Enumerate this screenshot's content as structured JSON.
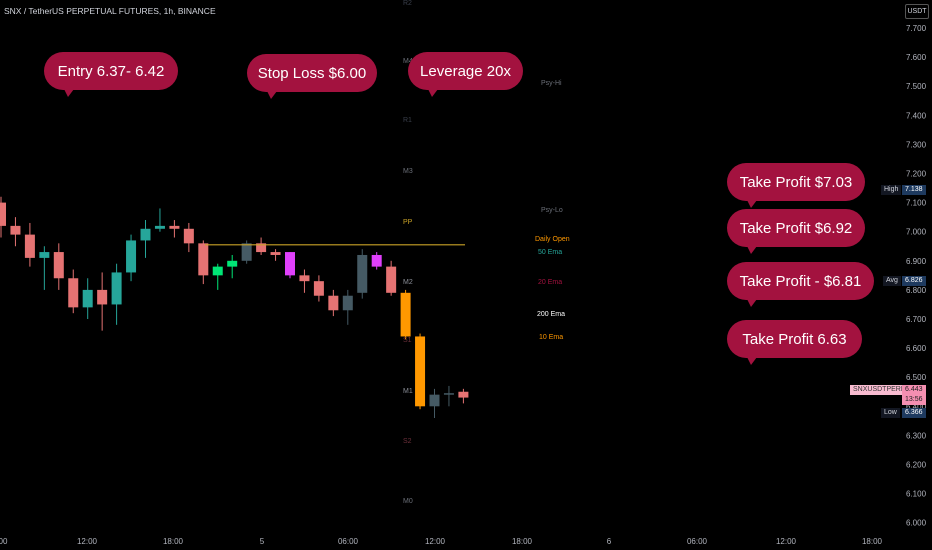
{
  "header": {
    "title": "SNX / TetherUS PERPETUAL FUTURES, 1h, BINANCE",
    "currency_button": "USDT"
  },
  "annotations": [
    {
      "label": "Entry 6.37- 6.42"
    },
    {
      "label": "Stop Loss $6.00"
    },
    {
      "label": "Leverage 20x"
    },
    {
      "label": "Take Profit $7.03"
    },
    {
      "label": "Take Profit $6.92"
    },
    {
      "label": "Take Profit - $6.81"
    },
    {
      "label": "Take Profit 6.63"
    }
  ],
  "price_tags": {
    "high": {
      "label": "High",
      "value": "7.138"
    },
    "avg": {
      "label": "Avg",
      "value": "6.826"
    },
    "symbol": {
      "label": "SNXUSDTPERP",
      "value": "6.443",
      "countdown": "13:56"
    },
    "low": {
      "label": "Low",
      "value": "6.366"
    }
  },
  "chart_data": {
    "type": "candlestick",
    "y_ticks": [
      "7.700",
      "7.600",
      "7.500",
      "7.400",
      "7.300",
      "7.200",
      "7.100",
      "7.000",
      "6.900",
      "6.800",
      "6.700",
      "6.600",
      "6.500",
      "6.400",
      "6.300",
      "6.200",
      "6.100",
      "6.000"
    ],
    "x_ticks": [
      "00",
      "12:00",
      "18:00",
      "5",
      "06:00",
      "12:00",
      "18:00",
      "6",
      "06:00",
      "12:00",
      "18:00"
    ],
    "pivot_labels": [
      "R2",
      "M4",
      "R1",
      "M3",
      "PP",
      "M2",
      "S1",
      "M1",
      "S2",
      "M0"
    ],
    "indicator_labels": [
      "Psy-Hi",
      "Psy-Lo",
      "Daily Open",
      "50 Ema",
      "20 Ema",
      "200 Ema",
      "10 Ema"
    ],
    "daily_open": 6.955,
    "colors": {
      "up": "#26a69a",
      "down": "#e57373",
      "up_bright": "#00e676",
      "down_magenta": "#e040fb",
      "down_orange": "#ff9800",
      "up_grey": "#455a64"
    },
    "candles": [
      {
        "o": 7.1,
        "h": 7.12,
        "l": 6.98,
        "c": 7.02,
        "k": "down"
      },
      {
        "o": 7.02,
        "h": 7.05,
        "l": 6.95,
        "c": 6.99,
        "k": "down"
      },
      {
        "o": 6.99,
        "h": 7.03,
        "l": 6.88,
        "c": 6.91,
        "k": "down"
      },
      {
        "o": 6.91,
        "h": 6.95,
        "l": 6.8,
        "c": 6.93,
        "k": "up"
      },
      {
        "o": 6.93,
        "h": 6.96,
        "l": 6.8,
        "c": 6.84,
        "k": "down"
      },
      {
        "o": 6.84,
        "h": 6.87,
        "l": 6.72,
        "c": 6.74,
        "k": "down"
      },
      {
        "o": 6.74,
        "h": 6.84,
        "l": 6.7,
        "c": 6.8,
        "k": "up"
      },
      {
        "o": 6.8,
        "h": 6.86,
        "l": 6.66,
        "c": 6.75,
        "k": "down"
      },
      {
        "o": 6.75,
        "h": 6.89,
        "l": 6.68,
        "c": 6.86,
        "k": "up"
      },
      {
        "o": 6.86,
        "h": 6.99,
        "l": 6.83,
        "c": 6.97,
        "k": "up"
      },
      {
        "o": 6.97,
        "h": 7.04,
        "l": 6.91,
        "c": 7.01,
        "k": "up"
      },
      {
        "o": 7.01,
        "h": 7.08,
        "l": 7.0,
        "c": 7.02,
        "k": "up"
      },
      {
        "o": 7.02,
        "h": 7.04,
        "l": 6.98,
        "c": 7.01,
        "k": "down"
      },
      {
        "o": 7.01,
        "h": 7.03,
        "l": 6.93,
        "c": 6.96,
        "k": "down"
      },
      {
        "o": 6.96,
        "h": 6.97,
        "l": 6.82,
        "c": 6.85,
        "k": "down"
      },
      {
        "o": 6.85,
        "h": 6.89,
        "l": 6.8,
        "c": 6.88,
        "k": "upb"
      },
      {
        "o": 6.88,
        "h": 6.92,
        "l": 6.84,
        "c": 6.9,
        "k": "upb"
      },
      {
        "o": 6.9,
        "h": 6.97,
        "l": 6.89,
        "c": 6.96,
        "k": "upg"
      },
      {
        "o": 6.96,
        "h": 6.98,
        "l": 6.92,
        "c": 6.93,
        "k": "down"
      },
      {
        "o": 6.93,
        "h": 6.94,
        "l": 6.9,
        "c": 6.92,
        "k": "down"
      },
      {
        "o": 6.93,
        "h": 6.93,
        "l": 6.84,
        "c": 6.85,
        "k": "mag"
      },
      {
        "o": 6.85,
        "h": 6.87,
        "l": 6.79,
        "c": 6.83,
        "k": "down"
      },
      {
        "o": 6.83,
        "h": 6.85,
        "l": 6.76,
        "c": 6.78,
        "k": "down"
      },
      {
        "o": 6.78,
        "h": 6.8,
        "l": 6.71,
        "c": 6.73,
        "k": "down"
      },
      {
        "o": 6.73,
        "h": 6.8,
        "l": 6.68,
        "c": 6.78,
        "k": "upg"
      },
      {
        "o": 6.79,
        "h": 6.94,
        "l": 6.77,
        "c": 6.92,
        "k": "upg"
      },
      {
        "o": 6.92,
        "h": 6.93,
        "l": 6.87,
        "c": 6.88,
        "k": "mag"
      },
      {
        "o": 6.88,
        "h": 6.9,
        "l": 6.78,
        "c": 6.79,
        "k": "down"
      },
      {
        "o": 6.79,
        "h": 6.8,
        "l": 6.63,
        "c": 6.64,
        "k": "org"
      },
      {
        "o": 6.64,
        "h": 6.65,
        "l": 6.39,
        "c": 6.4,
        "k": "org"
      },
      {
        "o": 6.4,
        "h": 6.46,
        "l": 6.36,
        "c": 6.44,
        "k": "upg"
      },
      {
        "o": 6.44,
        "h": 6.47,
        "l": 6.4,
        "c": 6.445,
        "k": "upg"
      },
      {
        "o": 6.45,
        "h": 6.46,
        "l": 6.41,
        "c": 6.43,
        "k": "down"
      }
    ]
  }
}
